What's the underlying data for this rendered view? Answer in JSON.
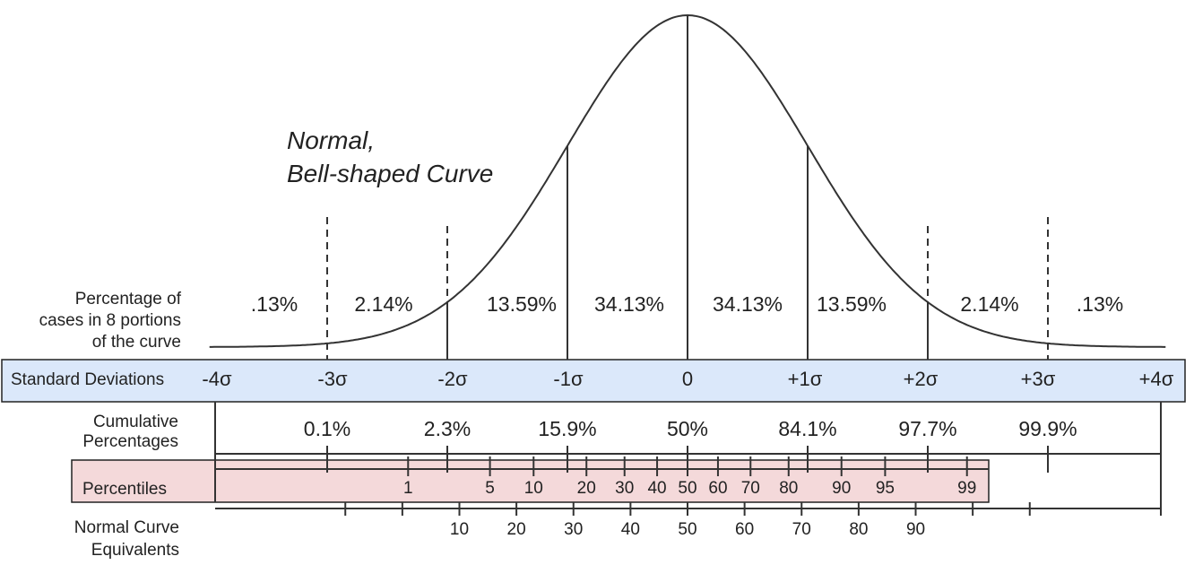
{
  "title": [
    "Normal,",
    "Bell-shaped Curve"
  ],
  "row_labels": {
    "portions": [
      "Percentage of",
      "cases in 8 portions",
      "of the curve"
    ],
    "standard_deviations": "Standard Deviations",
    "cumulative": [
      "Cumulative",
      "Percentages"
    ],
    "percentiles": "Percentiles",
    "nce": [
      "Normal Curve",
      "Equivalents"
    ]
  },
  "colors": {
    "sd_band": "#dbe8fa",
    "percentile_band": "#f4d9da",
    "ink": "#222222"
  },
  "chart_data": {
    "type": "diagram",
    "distribution": "normal",
    "x_range_sigma": [
      -4,
      4
    ],
    "portion_percentages": [
      ".13%",
      "2.14%",
      "13.59%",
      "34.13%",
      "34.13%",
      "13.59%",
      "2.14%",
      ".13%"
    ],
    "standard_deviations": [
      "-4σ",
      "-3σ",
      "-2σ",
      "-1σ",
      "0",
      "+1σ",
      "+2σ",
      "+3σ",
      "+4σ"
    ],
    "cumulative": [
      {
        "label": "0.1%",
        "z": -3
      },
      {
        "label": "2.3%",
        "z": -2
      },
      {
        "label": "15.9%",
        "z": -1
      },
      {
        "label": "50%",
        "z": 0
      },
      {
        "label": "84.1%",
        "z": 1
      },
      {
        "label": "97.7%",
        "z": 2
      },
      {
        "label": "99.9%",
        "z": 3
      }
    ],
    "percentiles": [
      {
        "label": "1",
        "value": 1
      },
      {
        "label": "5",
        "value": 5
      },
      {
        "label": "10",
        "value": 10
      },
      {
        "label": "20",
        "value": 20
      },
      {
        "label": "30",
        "value": 30
      },
      {
        "label": "40",
        "value": 40
      },
      {
        "label": "50",
        "value": 50
      },
      {
        "label": "60",
        "value": 60
      },
      {
        "label": "70",
        "value": 70
      },
      {
        "label": "80",
        "value": 80
      },
      {
        "label": "90",
        "value": 90
      },
      {
        "label": "95",
        "value": 95
      },
      {
        "label": "99",
        "value": 99
      }
    ],
    "nce_ticks": [
      -10,
      0,
      10,
      20,
      30,
      40,
      50,
      60,
      70,
      80,
      90,
      100,
      110
    ],
    "nce_labels": [
      "10",
      "20",
      "30",
      "40",
      "50",
      "60",
      "70",
      "80",
      "90"
    ]
  }
}
